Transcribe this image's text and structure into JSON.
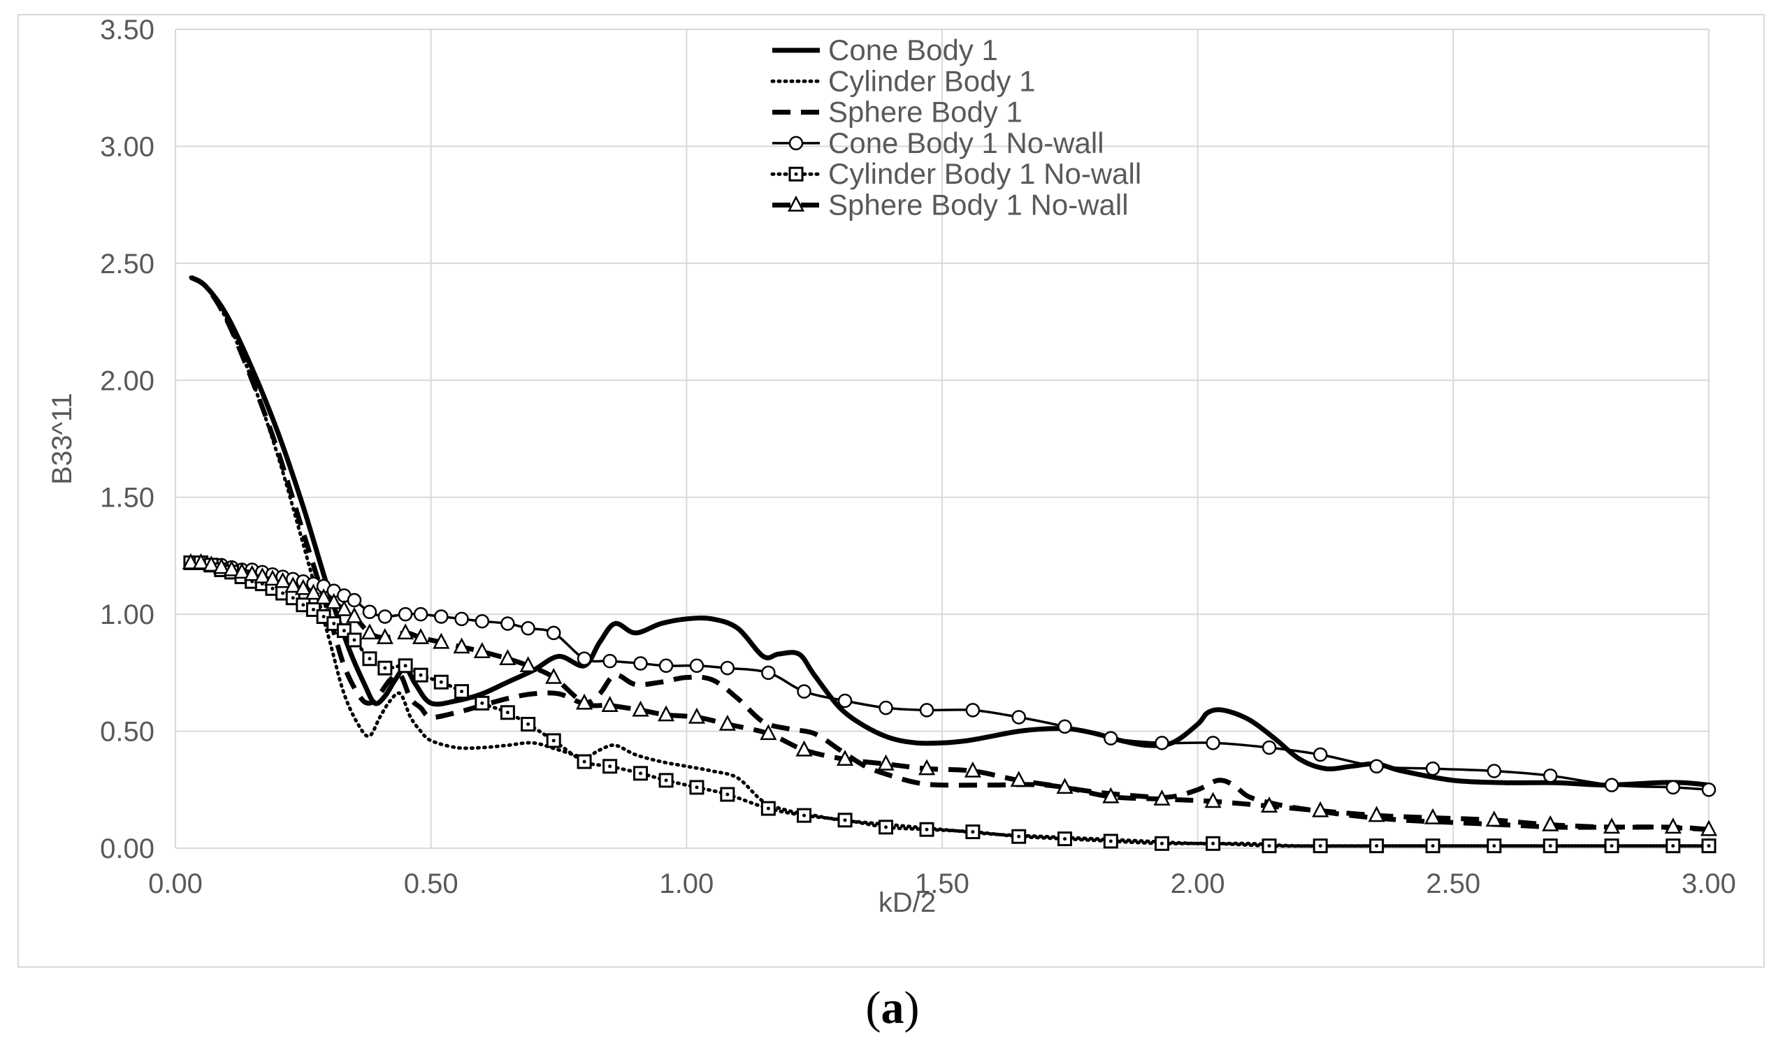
{
  "caption": {
    "open": "(",
    "letter": "a",
    "close": ")"
  },
  "chart_data": {
    "type": "line",
    "xlabel": "kD/2",
    "ylabel": "B33^11",
    "xlim": [
      0,
      3
    ],
    "ylim": [
      0,
      3.5
    ],
    "x_ticks": [
      "0.00",
      "0.50",
      "1.00",
      "1.50",
      "2.00",
      "2.50",
      "3.00"
    ],
    "y_ticks": [
      "0.00",
      "0.50",
      "1.00",
      "1.50",
      "2.00",
      "2.50",
      "3.00",
      "3.50"
    ],
    "grid": true,
    "legend_position": "top-right",
    "series": [
      {
        "name": "Cone Body 1",
        "style": "solid-thick",
        "marker": "none",
        "x": [
          0.03,
          0.06,
          0.1,
          0.15,
          0.2,
          0.25,
          0.3,
          0.34,
          0.37,
          0.39,
          0.41,
          0.43,
          0.45,
          0.47,
          0.5,
          0.55,
          0.6,
          0.65,
          0.7,
          0.75,
          0.8,
          0.83,
          0.86,
          0.9,
          0.95,
          1.0,
          1.05,
          1.1,
          1.15,
          1.18,
          1.22,
          1.25,
          1.3,
          1.35,
          1.4,
          1.45,
          1.5,
          1.55,
          1.6,
          1.65,
          1.7,
          1.75,
          1.8,
          1.85,
          1.9,
          1.95,
          2.0,
          2.02,
          2.05,
          2.1,
          2.15,
          2.2,
          2.25,
          2.3,
          2.35,
          2.4,
          2.5,
          2.6,
          2.7,
          2.8,
          2.9,
          2.95,
          3.0
        ],
        "y": [
          2.44,
          2.4,
          2.28,
          2.05,
          1.78,
          1.46,
          1.1,
          0.85,
          0.7,
          0.62,
          0.65,
          0.72,
          0.77,
          0.7,
          0.62,
          0.63,
          0.66,
          0.71,
          0.76,
          0.82,
          0.78,
          0.88,
          0.96,
          0.92,
          0.96,
          0.98,
          0.98,
          0.94,
          0.82,
          0.83,
          0.83,
          0.74,
          0.6,
          0.52,
          0.47,
          0.45,
          0.45,
          0.46,
          0.48,
          0.5,
          0.51,
          0.51,
          0.49,
          0.46,
          0.44,
          0.45,
          0.53,
          0.58,
          0.59,
          0.55,
          0.47,
          0.38,
          0.34,
          0.35,
          0.36,
          0.33,
          0.29,
          0.28,
          0.28,
          0.27,
          0.28,
          0.28,
          0.27
        ]
      },
      {
        "name": "Cylinder Body 1",
        "style": "dotted",
        "marker": "none",
        "x": [
          0.03,
          0.06,
          0.1,
          0.15,
          0.2,
          0.25,
          0.3,
          0.33,
          0.36,
          0.38,
          0.4,
          0.42,
          0.44,
          0.46,
          0.48,
          0.5,
          0.55,
          0.6,
          0.65,
          0.7,
          0.75,
          0.8,
          0.83,
          0.86,
          0.9,
          0.95,
          1.0,
          1.05,
          1.1,
          1.15,
          1.2,
          1.25,
          1.3,
          1.35,
          1.4,
          1.5,
          1.6,
          1.7,
          1.8,
          1.9,
          2.0,
          2.1,
          2.2,
          2.4,
          2.6,
          2.8,
          3.0
        ],
        "y": [
          2.44,
          2.4,
          2.26,
          2.0,
          1.68,
          1.3,
          0.9,
          0.66,
          0.52,
          0.48,
          0.56,
          0.63,
          0.66,
          0.56,
          0.5,
          0.46,
          0.43,
          0.43,
          0.44,
          0.45,
          0.42,
          0.39,
          0.42,
          0.44,
          0.4,
          0.37,
          0.35,
          0.33,
          0.3,
          0.2,
          0.16,
          0.14,
          0.12,
          0.11,
          0.1,
          0.08,
          0.06,
          0.05,
          0.04,
          0.03,
          0.02,
          0.02,
          0.01,
          0.01,
          0.01,
          0.01,
          0.01
        ]
      },
      {
        "name": "Sphere Body 1",
        "style": "dashed",
        "marker": "none",
        "x": [
          0.03,
          0.06,
          0.1,
          0.15,
          0.2,
          0.25,
          0.3,
          0.33,
          0.36,
          0.38,
          0.4,
          0.42,
          0.44,
          0.46,
          0.48,
          0.5,
          0.55,
          0.6,
          0.65,
          0.7,
          0.75,
          0.8,
          0.83,
          0.86,
          0.9,
          0.95,
          1.0,
          1.05,
          1.1,
          1.15,
          1.2,
          1.25,
          1.3,
          1.35,
          1.4,
          1.45,
          1.5,
          1.6,
          1.7,
          1.8,
          1.9,
          1.95,
          2.0,
          2.04,
          2.07,
          2.1,
          2.15,
          2.2,
          2.3,
          2.4,
          2.5,
          2.6,
          2.7,
          2.8,
          2.9,
          3.0
        ],
        "y": [
          2.44,
          2.4,
          2.26,
          2.0,
          1.7,
          1.35,
          1.0,
          0.78,
          0.65,
          0.62,
          0.66,
          0.72,
          0.74,
          0.64,
          0.6,
          0.56,
          0.58,
          0.61,
          0.64,
          0.66,
          0.66,
          0.62,
          0.66,
          0.74,
          0.7,
          0.71,
          0.73,
          0.72,
          0.64,
          0.54,
          0.51,
          0.49,
          0.42,
          0.35,
          0.31,
          0.28,
          0.27,
          0.27,
          0.27,
          0.24,
          0.22,
          0.22,
          0.25,
          0.29,
          0.27,
          0.22,
          0.19,
          0.17,
          0.14,
          0.12,
          0.11,
          0.1,
          0.09,
          0.09,
          0.09,
          0.08
        ]
      },
      {
        "name": "Cone Body 1 No-wall",
        "style": "solid-thin",
        "marker": "circle",
        "x": [
          0.03,
          0.05,
          0.07,
          0.09,
          0.11,
          0.13,
          0.15,
          0.17,
          0.19,
          0.21,
          0.23,
          0.25,
          0.27,
          0.29,
          0.31,
          0.33,
          0.35,
          0.38,
          0.41,
          0.45,
          0.48,
          0.52,
          0.56,
          0.6,
          0.65,
          0.69,
          0.74,
          0.8,
          0.85,
          0.91,
          0.96,
          1.02,
          1.08,
          1.16,
          1.23,
          1.31,
          1.39,
          1.47,
          1.56,
          1.65,
          1.74,
          1.83,
          1.93,
          2.03,
          2.14,
          2.24,
          2.35,
          2.46,
          2.58,
          2.69,
          2.81,
          2.93,
          3.0
        ],
        "y": [
          1.22,
          1.22,
          1.21,
          1.21,
          1.2,
          1.19,
          1.19,
          1.18,
          1.17,
          1.16,
          1.15,
          1.14,
          1.13,
          1.12,
          1.1,
          1.08,
          1.06,
          1.01,
          0.99,
          1.0,
          1.0,
          0.99,
          0.98,
          0.97,
          0.96,
          0.94,
          0.92,
          0.81,
          0.8,
          0.79,
          0.78,
          0.78,
          0.77,
          0.75,
          0.67,
          0.63,
          0.6,
          0.59,
          0.59,
          0.56,
          0.52,
          0.47,
          0.45,
          0.45,
          0.43,
          0.4,
          0.35,
          0.34,
          0.33,
          0.31,
          0.27,
          0.26,
          0.25
        ]
      },
      {
        "name": "Cylinder Body 1 No-wall",
        "style": "dotted",
        "marker": "square",
        "x": [
          0.03,
          0.05,
          0.07,
          0.09,
          0.11,
          0.13,
          0.15,
          0.17,
          0.19,
          0.21,
          0.23,
          0.25,
          0.27,
          0.29,
          0.31,
          0.33,
          0.35,
          0.38,
          0.41,
          0.45,
          0.48,
          0.52,
          0.56,
          0.6,
          0.65,
          0.69,
          0.74,
          0.8,
          0.85,
          0.91,
          0.96,
          1.02,
          1.08,
          1.16,
          1.23,
          1.31,
          1.39,
          1.47,
          1.56,
          1.65,
          1.74,
          1.83,
          1.93,
          2.03,
          2.14,
          2.24,
          2.35,
          2.46,
          2.58,
          2.69,
          2.81,
          2.93,
          3.0
        ],
        "y": [
          1.22,
          1.22,
          1.21,
          1.19,
          1.18,
          1.16,
          1.14,
          1.13,
          1.11,
          1.09,
          1.07,
          1.04,
          1.02,
          0.99,
          0.96,
          0.93,
          0.89,
          0.81,
          0.77,
          0.78,
          0.74,
          0.71,
          0.67,
          0.62,
          0.58,
          0.53,
          0.46,
          0.37,
          0.35,
          0.32,
          0.29,
          0.26,
          0.23,
          0.17,
          0.14,
          0.12,
          0.09,
          0.08,
          0.07,
          0.05,
          0.04,
          0.03,
          0.02,
          0.02,
          0.01,
          0.01,
          0.01,
          0.01,
          0.01,
          0.01,
          0.01,
          0.01,
          0.01
        ]
      },
      {
        "name": "Sphere Body 1 No-wall",
        "style": "dashed",
        "marker": "triangle",
        "x": [
          0.03,
          0.05,
          0.07,
          0.09,
          0.11,
          0.13,
          0.15,
          0.17,
          0.19,
          0.21,
          0.23,
          0.25,
          0.27,
          0.29,
          0.31,
          0.33,
          0.35,
          0.38,
          0.41,
          0.45,
          0.48,
          0.52,
          0.56,
          0.6,
          0.65,
          0.69,
          0.74,
          0.8,
          0.85,
          0.91,
          0.96,
          1.02,
          1.08,
          1.16,
          1.23,
          1.31,
          1.39,
          1.47,
          1.56,
          1.65,
          1.74,
          1.83,
          1.93,
          2.03,
          2.14,
          2.24,
          2.35,
          2.46,
          2.58,
          2.69,
          2.81,
          2.93,
          3.0
        ],
        "y": [
          1.22,
          1.22,
          1.21,
          1.2,
          1.19,
          1.18,
          1.17,
          1.16,
          1.15,
          1.14,
          1.12,
          1.11,
          1.09,
          1.07,
          1.05,
          1.02,
          0.99,
          0.92,
          0.9,
          0.92,
          0.9,
          0.88,
          0.86,
          0.84,
          0.81,
          0.78,
          0.73,
          0.62,
          0.61,
          0.59,
          0.57,
          0.56,
          0.53,
          0.49,
          0.42,
          0.38,
          0.36,
          0.34,
          0.33,
          0.29,
          0.26,
          0.22,
          0.21,
          0.2,
          0.18,
          0.16,
          0.14,
          0.13,
          0.12,
          0.1,
          0.09,
          0.09,
          0.08
        ]
      }
    ]
  }
}
